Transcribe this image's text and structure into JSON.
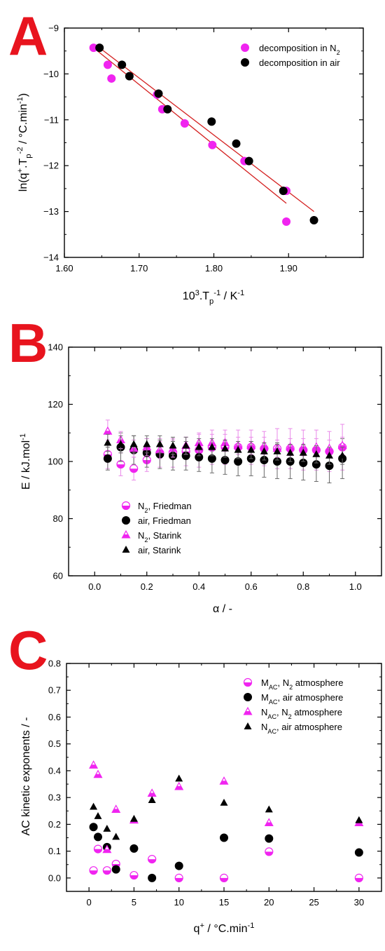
{
  "panels": [
    {
      "letter": "A",
      "chart_data": {
        "type": "scatter",
        "title": "",
        "xlabel": "10³.Tp⁻¹ / K⁻¹",
        "ylabel": "ln(q⁺.Tp⁻² / °C.min⁻¹)",
        "xlim": [
          1.6,
          2.0
        ],
        "ylim": [
          -14,
          -9
        ],
        "xticks": [
          1.6,
          1.7,
          1.8,
          1.9
        ],
        "yticks": [
          -14,
          -13,
          -12,
          -11,
          -10,
          -9
        ],
        "legend_position": "top-right",
        "series": [
          {
            "name": "decomposition in N₂",
            "marker": "circle",
            "color": "#f024f0",
            "x": [
              1.639,
              1.658,
              1.663,
              1.724,
              1.731,
              1.761,
              1.798,
              1.841,
              1.897,
              1.897
            ],
            "y": [
              -9.43,
              -9.8,
              -10.1,
              -10.45,
              -10.77,
              -11.08,
              -11.55,
              -11.9,
              -12.55,
              -13.22
            ],
            "fit": [
              [
                1.639,
                -9.43
              ],
              [
                1.897,
                -12.82
              ]
            ]
          },
          {
            "name": "decomposition in air",
            "marker": "circle",
            "color": "#000000",
            "x": [
              1.647,
              1.677,
              1.687,
              1.726,
              1.738,
              1.797,
              1.83,
              1.847,
              1.893,
              1.934
            ],
            "y": [
              -9.43,
              -9.8,
              -10.05,
              -10.43,
              -10.77,
              -11.04,
              -11.52,
              -11.9,
              -12.55,
              -13.19
            ],
            "fit": [
              [
                1.647,
                -9.43
              ],
              [
                1.934,
                -13.0
              ]
            ]
          }
        ],
        "fit_color": "#d42020"
      }
    },
    {
      "letter": "B",
      "chart_data": {
        "type": "scatter",
        "title": "",
        "xlabel": "α / -",
        "ylabel": "E / kJ.mol⁻¹",
        "xlim": [
          -0.1,
          1.1
        ],
        "ylim": [
          60,
          140
        ],
        "xticks": [
          0.0,
          0.2,
          0.4,
          0.6,
          0.8,
          1.0
        ],
        "yticks": [
          60,
          80,
          100,
          120,
          140
        ],
        "legend_position": "bottom-left",
        "x": [
          0.05,
          0.1,
          0.15,
          0.2,
          0.25,
          0.3,
          0.35,
          0.4,
          0.45,
          0.5,
          0.55,
          0.6,
          0.65,
          0.7,
          0.75,
          0.8,
          0.85,
          0.9,
          0.95
        ],
        "series": [
          {
            "name": "N₂, Friedman",
            "marker": "half-circle",
            "color": "#f024f0",
            "values": [
              102.5,
              99,
              97.5,
              100.5,
              103,
              103,
              103.5,
              104,
              105,
              105,
              105,
              105,
              104.5,
              104.5,
              104.5,
              104,
              104,
              103.5,
              105
            ],
            "err": [
              5,
              4,
              4,
              4,
              5,
              5,
              5,
              6,
              6,
              6,
              6,
              6,
              6,
              7,
              7,
              7,
              7,
              7,
              8
            ]
          },
          {
            "name": "air, Friedman",
            "marker": "circle",
            "color": "#000000",
            "values": [
              101,
              105,
              104,
              103,
              102.5,
              102,
              102,
              101.5,
              101,
              100.5,
              100,
              101,
              100.5,
              100,
              100,
              99.5,
              99,
              98.5,
              101
            ],
            "err": [
              4,
              5,
              5,
              5,
              5,
              5,
              5,
              5,
              5,
              5,
              5,
              6,
              6,
              6,
              6,
              6,
              6,
              6,
              7
            ]
          },
          {
            "name": "N₂, Starink",
            "marker": "half-triangle",
            "color": "#f024f0",
            "values": [
              110.5,
              107.5,
              104.5,
              105,
              104,
              104.5,
              105.5,
              106.5,
              106.5,
              106.5,
              105.5,
              105.5,
              105.5,
              104.5,
              105,
              105,
              105,
              104.5,
              105.5
            ],
            "err": [
              4,
              3,
              3,
              3,
              3,
              3,
              3,
              3,
              3,
              3,
              3,
              3,
              3,
              3,
              3,
              3,
              3,
              3,
              3
            ]
          },
          {
            "name": "air, Starink",
            "marker": "triangle",
            "color": "#000000",
            "values": [
              106.5,
              106,
              106,
              106,
              106,
              105.5,
              105.5,
              105,
              105,
              104.5,
              104,
              104,
              103.5,
              103.5,
              103,
              103,
              102.5,
              102,
              102
            ],
            "err": [
              3,
              3,
              3,
              3,
              3,
              3,
              3,
              3,
              3,
              3,
              3,
              3,
              3,
              3,
              3,
              3,
              3,
              3,
              3
            ]
          }
        ]
      }
    },
    {
      "letter": "C",
      "chart_data": {
        "type": "scatter",
        "title": "",
        "xlabel": "q⁺ / °C.min⁻¹",
        "ylabel": "AC kinetic exponents / -",
        "xlim": [
          -2.5,
          32.5
        ],
        "ylim": [
          -0.05,
          0.8
        ],
        "xticks": [
          0,
          5,
          10,
          15,
          20,
          25,
          30
        ],
        "yticks": [
          0.0,
          0.1,
          0.2,
          0.3,
          0.4,
          0.5,
          0.6,
          0.7,
          0.8
        ],
        "legend_position": "top-right",
        "series": [
          {
            "name": "M_AC, N₂ atmosphere",
            "marker": "half-circle",
            "color": "#f024f0",
            "x": [
              0.5,
              1,
              2,
              3,
              5,
              7,
              10,
              15,
              20,
              30
            ],
            "y": [
              0.028,
              0.108,
              0.028,
              0.052,
              0.01,
              0.07,
              0.0,
              0.0,
              0.098,
              0.0
            ]
          },
          {
            "name": "M_AC, air atmosphere",
            "marker": "circle",
            "color": "#000000",
            "x": [
              0.5,
              1,
              2,
              3,
              5,
              7,
              10,
              15,
              20,
              30
            ],
            "y": [
              0.19,
              0.153,
              0.115,
              0.032,
              0.11,
              0.0,
              0.045,
              0.15,
              0.147,
              0.095
            ]
          },
          {
            "name": "N_AC, N₂ atmosphere",
            "marker": "half-triangle",
            "color": "#f024f0",
            "x": [
              0.5,
              1,
              2,
              3,
              5,
              7,
              10,
              15,
              20,
              30
            ],
            "y": [
              0.42,
              0.385,
              0.105,
              0.255,
              0.215,
              0.315,
              0.34,
              0.36,
              0.205,
              0.205
            ]
          },
          {
            "name": "N_AC, air atmosphere",
            "marker": "triangle",
            "color": "#000000",
            "x": [
              0.5,
              1,
              2,
              3,
              5,
              7,
              10,
              15,
              20,
              30
            ],
            "y": [
              0.265,
              0.23,
              0.183,
              0.153,
              0.22,
              0.29,
              0.37,
              0.28,
              0.255,
              0.215
            ]
          }
        ]
      }
    }
  ]
}
